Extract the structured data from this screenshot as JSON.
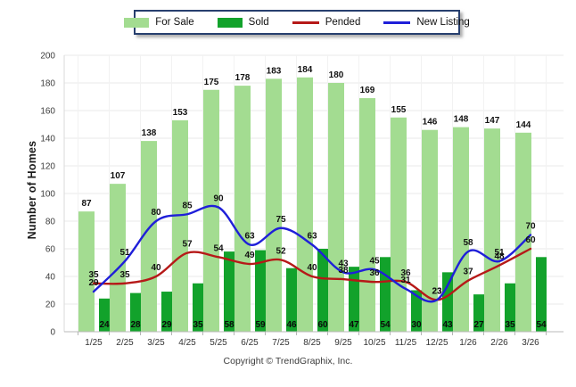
{
  "legend": {
    "border_color": "#273F6E",
    "items": [
      {
        "label": "For Sale",
        "type": "bar",
        "color": "#A3DC91"
      },
      {
        "label": "Sold",
        "type": "bar",
        "color": "#12A22B"
      },
      {
        "label": "Pended",
        "type": "line",
        "color": "#B61918"
      },
      {
        "label": "New Listing",
        "type": "line",
        "color": "#1F1FD9"
      }
    ]
  },
  "y_axis": {
    "title": "Number of Homes",
    "min": 0,
    "max": 200,
    "step": 20,
    "tick_labels": [
      "0",
      "20",
      "40",
      "60",
      "80",
      "100",
      "120",
      "140",
      "160",
      "180",
      "200"
    ]
  },
  "footer": {
    "copyright": "Copyright © TrendGraphix, Inc."
  },
  "chart_data": {
    "type": "bar",
    "subtype": "grouped bars with overlaid smooth lines",
    "title": "",
    "xlabel": "",
    "ylabel": "Number of Homes",
    "ylim": [
      0,
      200
    ],
    "grid": true,
    "legend_position": "top-center",
    "categories": [
      "1/25",
      "2/25",
      "3/25",
      "4/25",
      "5/25",
      "6/25",
      "7/25",
      "8/25",
      "9/25",
      "10/25",
      "11/25",
      "12/25",
      "1/26",
      "2/26",
      "3/26"
    ],
    "series": [
      {
        "name": "For Sale",
        "type": "bar",
        "color": "#A3DC91",
        "values": [
          87,
          107,
          138,
          153,
          175,
          178,
          183,
          184,
          180,
          169,
          155,
          146,
          148,
          147,
          144
        ]
      },
      {
        "name": "Sold",
        "type": "bar",
        "color": "#12A22B",
        "values": [
          24,
          28,
          29,
          35,
          58,
          59,
          46,
          60,
          47,
          54,
          30,
          43,
          27,
          35,
          54
        ]
      },
      {
        "name": "Pended",
        "type": "line",
        "color": "#B61918",
        "values": [
          35,
          35,
          40,
          57,
          54,
          49,
          52,
          40,
          38,
          36,
          36,
          23,
          37,
          48,
          60
        ]
      },
      {
        "name": "New Listing",
        "type": "line",
        "color": "#1F1FD9",
        "values": [
          29,
          51,
          80,
          85,
          90,
          63,
          75,
          63,
          43,
          45,
          31,
          23,
          58,
          51,
          70
        ]
      }
    ]
  }
}
